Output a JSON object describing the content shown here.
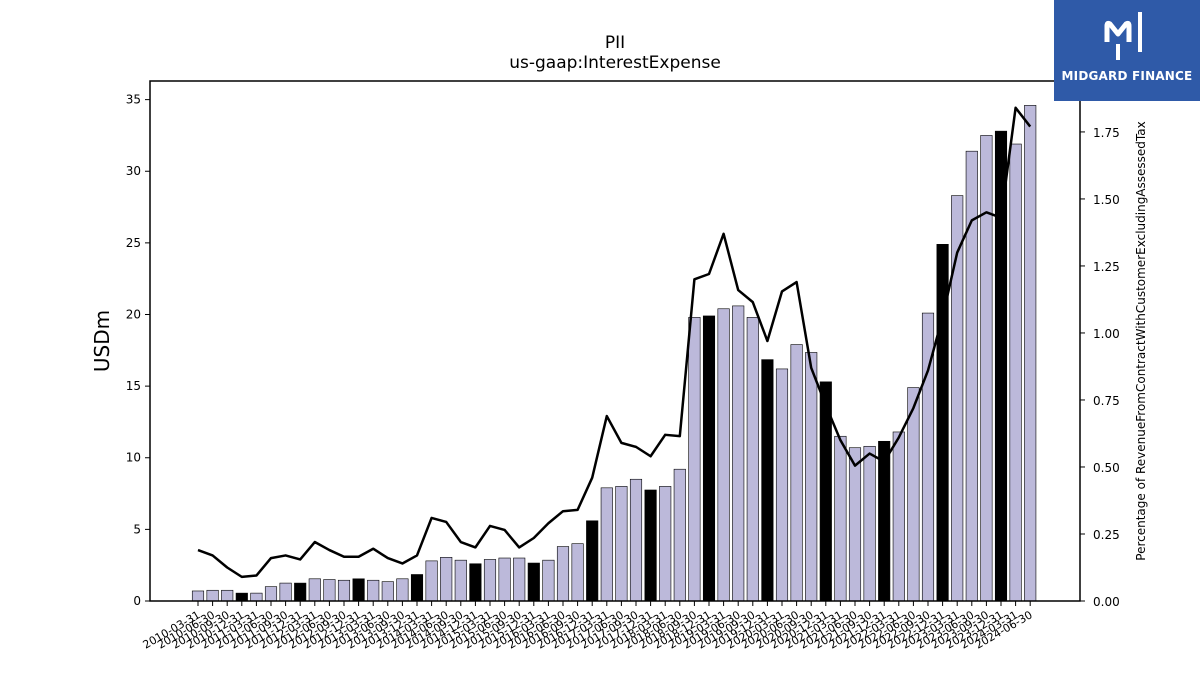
{
  "chart_data": {
    "type": "bar",
    "title": "PII",
    "subtitle": "us-gaap:InterestExpense",
    "ylabel": "USDm",
    "y2label": "Percentage of RevenueFromContractWithCustomerExcludingAssessedTax",
    "ylim": [
      0,
      36.3
    ],
    "y2lim": [
      0,
      1.94
    ],
    "yticks": [
      "0",
      "5",
      "10",
      "15",
      "20",
      "25",
      "30",
      "35"
    ],
    "y2ticks": [
      "0.00",
      "0.25",
      "0.50",
      "0.75",
      "1.00",
      "1.25",
      "1.50",
      "1.75"
    ],
    "categories": [
      "2010-03-31",
      "2010-06-30",
      "2010-09-30",
      "2010-12-31",
      "2011-03-31",
      "2011-06-30",
      "2011-09-30",
      "2011-12-31",
      "2012-03-31",
      "2012-06-30",
      "2012-09-30",
      "2012-12-31",
      "2013-03-31",
      "2013-06-30",
      "2013-09-30",
      "2013-12-31",
      "2014-03-31",
      "2014-06-30",
      "2014-09-30",
      "2014-12-31",
      "2015-03-31",
      "2015-06-30",
      "2015-09-30",
      "2015-12-31",
      "2016-03-31",
      "2016-06-30",
      "2016-09-30",
      "2016-12-31",
      "2017-03-31",
      "2017-06-30",
      "2017-09-30",
      "2017-12-31",
      "2018-03-31",
      "2018-06-30",
      "2018-09-30",
      "2018-12-31",
      "2019-03-31",
      "2019-06-30",
      "2019-09-30",
      "2019-12-31",
      "2020-03-31",
      "2020-06-30",
      "2020-09-30",
      "2020-12-31",
      "2021-03-31",
      "2021-06-30",
      "2021-09-30",
      "2021-12-31",
      "2022-03-31",
      "2022-06-30",
      "2022-09-30",
      "2022-12-31",
      "2023-03-31",
      "2023-06-30",
      "2023-09-30",
      "2023-12-31",
      "2024-03-31",
      "2024-06-30"
    ],
    "values": [
      0.7,
      0.75,
      0.75,
      0.55,
      0.55,
      1.0,
      1.25,
      1.25,
      1.55,
      1.5,
      1.45,
      1.55,
      1.45,
      1.35,
      1.55,
      1.85,
      2.8,
      3.05,
      2.85,
      2.6,
      2.9,
      3.0,
      3.0,
      2.65,
      2.85,
      3.8,
      4.0,
      5.6,
      7.9,
      8.0,
      8.5,
      7.75,
      8.0,
      9.2,
      19.8,
      19.9,
      20.4,
      20.6,
      19.8,
      16.85,
      16.2,
      17.9,
      17.35,
      15.3,
      11.5,
      10.7,
      10.8,
      11.15,
      11.8,
      14.9,
      20.1,
      24.9,
      28.3,
      31.4,
      32.5,
      32.8,
      31.9,
      34.6
    ],
    "highlight": [
      false,
      false,
      false,
      true,
      false,
      false,
      false,
      true,
      false,
      false,
      false,
      true,
      false,
      false,
      false,
      true,
      false,
      false,
      false,
      true,
      false,
      false,
      false,
      true,
      false,
      false,
      false,
      true,
      false,
      false,
      false,
      true,
      false,
      false,
      false,
      true,
      false,
      false,
      false,
      true,
      false,
      false,
      false,
      true,
      false,
      false,
      false,
      true,
      false,
      false,
      false,
      true,
      false,
      false,
      false,
      true,
      false,
      false
    ],
    "series": [
      {
        "values": [
          0.19,
          0.17,
          0.125,
          0.09,
          0.095,
          0.16,
          0.17,
          0.155,
          0.22,
          0.19,
          0.165,
          0.165,
          0.195,
          0.16,
          0.14,
          0.17,
          0.31,
          0.295,
          0.22,
          0.2,
          0.28,
          0.265,
          0.2,
          0.235,
          0.29,
          0.335,
          0.34,
          0.46,
          0.69,
          0.59,
          0.575,
          0.54,
          0.62,
          0.615,
          1.2,
          1.22,
          1.37,
          1.16,
          1.115,
          0.97,
          1.155,
          1.19,
          0.87,
          0.73,
          0.6,
          0.505,
          0.55,
          0.52,
          0.61,
          0.72,
          0.86,
          1.06,
          1.3,
          1.42,
          1.45,
          1.43,
          1.84,
          1.77
        ]
      }
    ],
    "colors": {
      "bar": "#bcb9da",
      "highlight": "#000000",
      "line": "#000000"
    },
    "grid": false
  },
  "logo": {
    "text": "MIDGARD FINANCE",
    "color": "#2f5aa8"
  }
}
